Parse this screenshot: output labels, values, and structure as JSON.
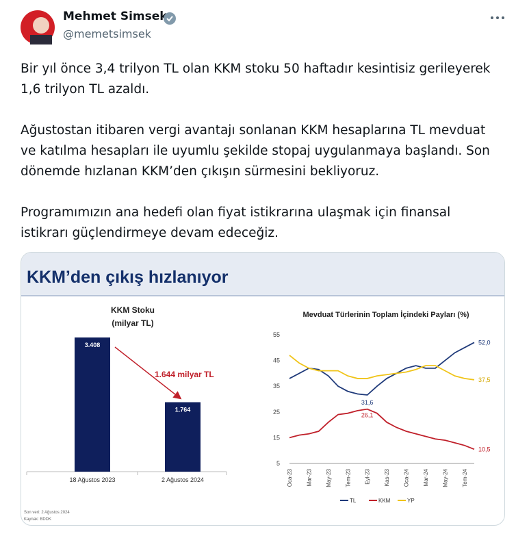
{
  "tweet": {
    "name": "Mehmet Simsek",
    "handle": "@memetsimsek",
    "paragraphs": [
      "Bir yıl önce 3,4 trilyon TL olan KKM stoku 50 haftadır kesintisiz gerileyerek 1,6 trilyon TL azaldı.",
      "Ağustostan itibaren vergi avantajı sonlanan KKM hesaplarına TL mevduat ve katılma hesapları ile uyumlu şekilde stopaj uygulanmaya başlandı. Son dönemde hızlanan KKM’den çıkışın sürmesini bekliyoruz.",
      "Programımızın ana hedefi olan fiyat istikrarına ulaşmak için finansal istikrarı güçlendirmeye devam edeceğiz."
    ],
    "image": {
      "heading": "KKM’den çıkış hızlanıyor",
      "notes": [
        "Son veri: 2 Ağustos 2024",
        "Kaynak: BDDK"
      ]
    }
  },
  "chart_data": [
    {
      "type": "bar",
      "title": "KKM Stoku",
      "subtitle": "(milyar TL)",
      "categories": [
        "18 Ağustos 2023",
        "2 Ağustos 2024"
      ],
      "values": [
        3408,
        1764
      ],
      "value_labels": [
        "3.408",
        "1.764"
      ],
      "color": "#0f1f5c",
      "annotation": "1.644 milyar TL",
      "annotation_color": "#c0202a"
    },
    {
      "type": "line",
      "title": "Mevduat Türlerinin Toplam İçindeki Payları (%)",
      "categories": [
        "Oca-23",
        null,
        "Mar-23",
        null,
        "May-23",
        null,
        "Tem-23",
        null,
        "Eyl-23",
        null,
        "Kas-23",
        null,
        "Oca-24",
        null,
        "Mar-24",
        null,
        "May-24",
        null,
        "Tem-24",
        null
      ],
      "ylim": [
        5,
        55
      ],
      "yticks": [
        5,
        15,
        25,
        35,
        45,
        55
      ],
      "legend": "bottom",
      "series": [
        {
          "name": "TL",
          "color": "#1f3a7a",
          "values": [
            38,
            40,
            42,
            41.5,
            39,
            35,
            33,
            32,
            31.6,
            35,
            38,
            40,
            42,
            43,
            42,
            42,
            45,
            48,
            50,
            52.0
          ],
          "value_labels": [
            null,
            null,
            null,
            null,
            null,
            null,
            null,
            null,
            "31,6",
            null,
            null,
            null,
            null,
            null,
            null,
            null,
            null,
            null,
            null,
            "52,0"
          ]
        },
        {
          "name": "KKM",
          "color": "#c0202a",
          "values": [
            15,
            16,
            16.5,
            17.5,
            21,
            24,
            24.5,
            25.5,
            26.1,
            24.5,
            21,
            19,
            17.5,
            16.5,
            15.5,
            14.5,
            14,
            13,
            12,
            10.5
          ],
          "value_labels": [
            null,
            null,
            null,
            null,
            null,
            null,
            null,
            null,
            "26,1",
            null,
            null,
            null,
            null,
            null,
            null,
            null,
            null,
            null,
            null,
            "10,5"
          ]
        },
        {
          "name": "YP",
          "color": "#f0c419",
          "values": [
            47,
            44,
            42,
            41,
            41,
            41,
            39,
            38,
            38,
            39,
            39.5,
            40,
            40.5,
            41.5,
            43,
            43,
            41,
            39,
            38,
            37.5
          ],
          "value_labels": [
            null,
            null,
            null,
            null,
            null,
            null,
            null,
            null,
            null,
            null,
            null,
            null,
            null,
            null,
            null,
            null,
            null,
            null,
            null,
            "37,5"
          ]
        }
      ]
    }
  ]
}
